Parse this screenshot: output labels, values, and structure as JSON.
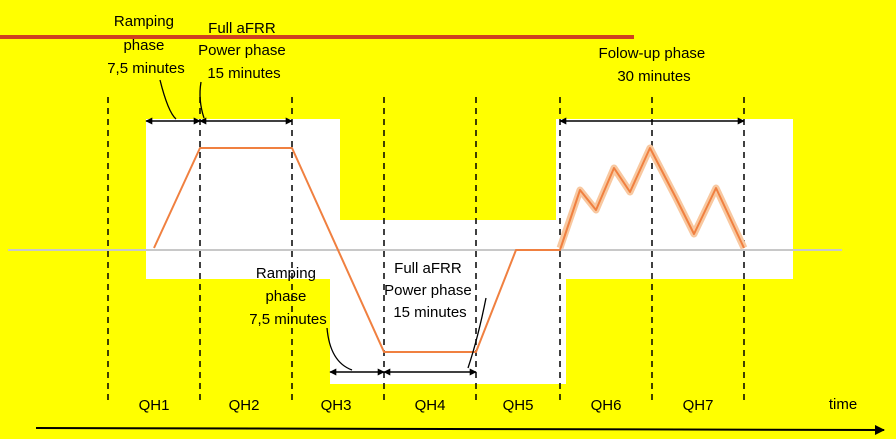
{
  "colors": {
    "background": "#ffff00",
    "panel": "#ffffff",
    "signal": "#f08040",
    "signal_halo": "#f8c8a0",
    "baseline": "#c8c8c8",
    "top_rule": "#d04020",
    "ink": "#000000"
  },
  "labels": {
    "ramping_1": [
      "Ramping",
      "phase",
      "7,5 minutes"
    ],
    "full_power_1": [
      "Full aFRR",
      "Power phase",
      "15 minutes"
    ],
    "followup": [
      "Folow-up  phase",
      "30 minutes"
    ],
    "ramping_2": [
      "Ramping",
      "phase",
      "7,5 minutes"
    ],
    "full_power_2": [
      "Full aFRR",
      "Power phase",
      "15 minutes"
    ],
    "time": "time"
  },
  "quarter_hours": [
    "QH1",
    "QH2",
    "QH3",
    "QH4",
    "QH5",
    "QH6",
    "QH7"
  ]
}
